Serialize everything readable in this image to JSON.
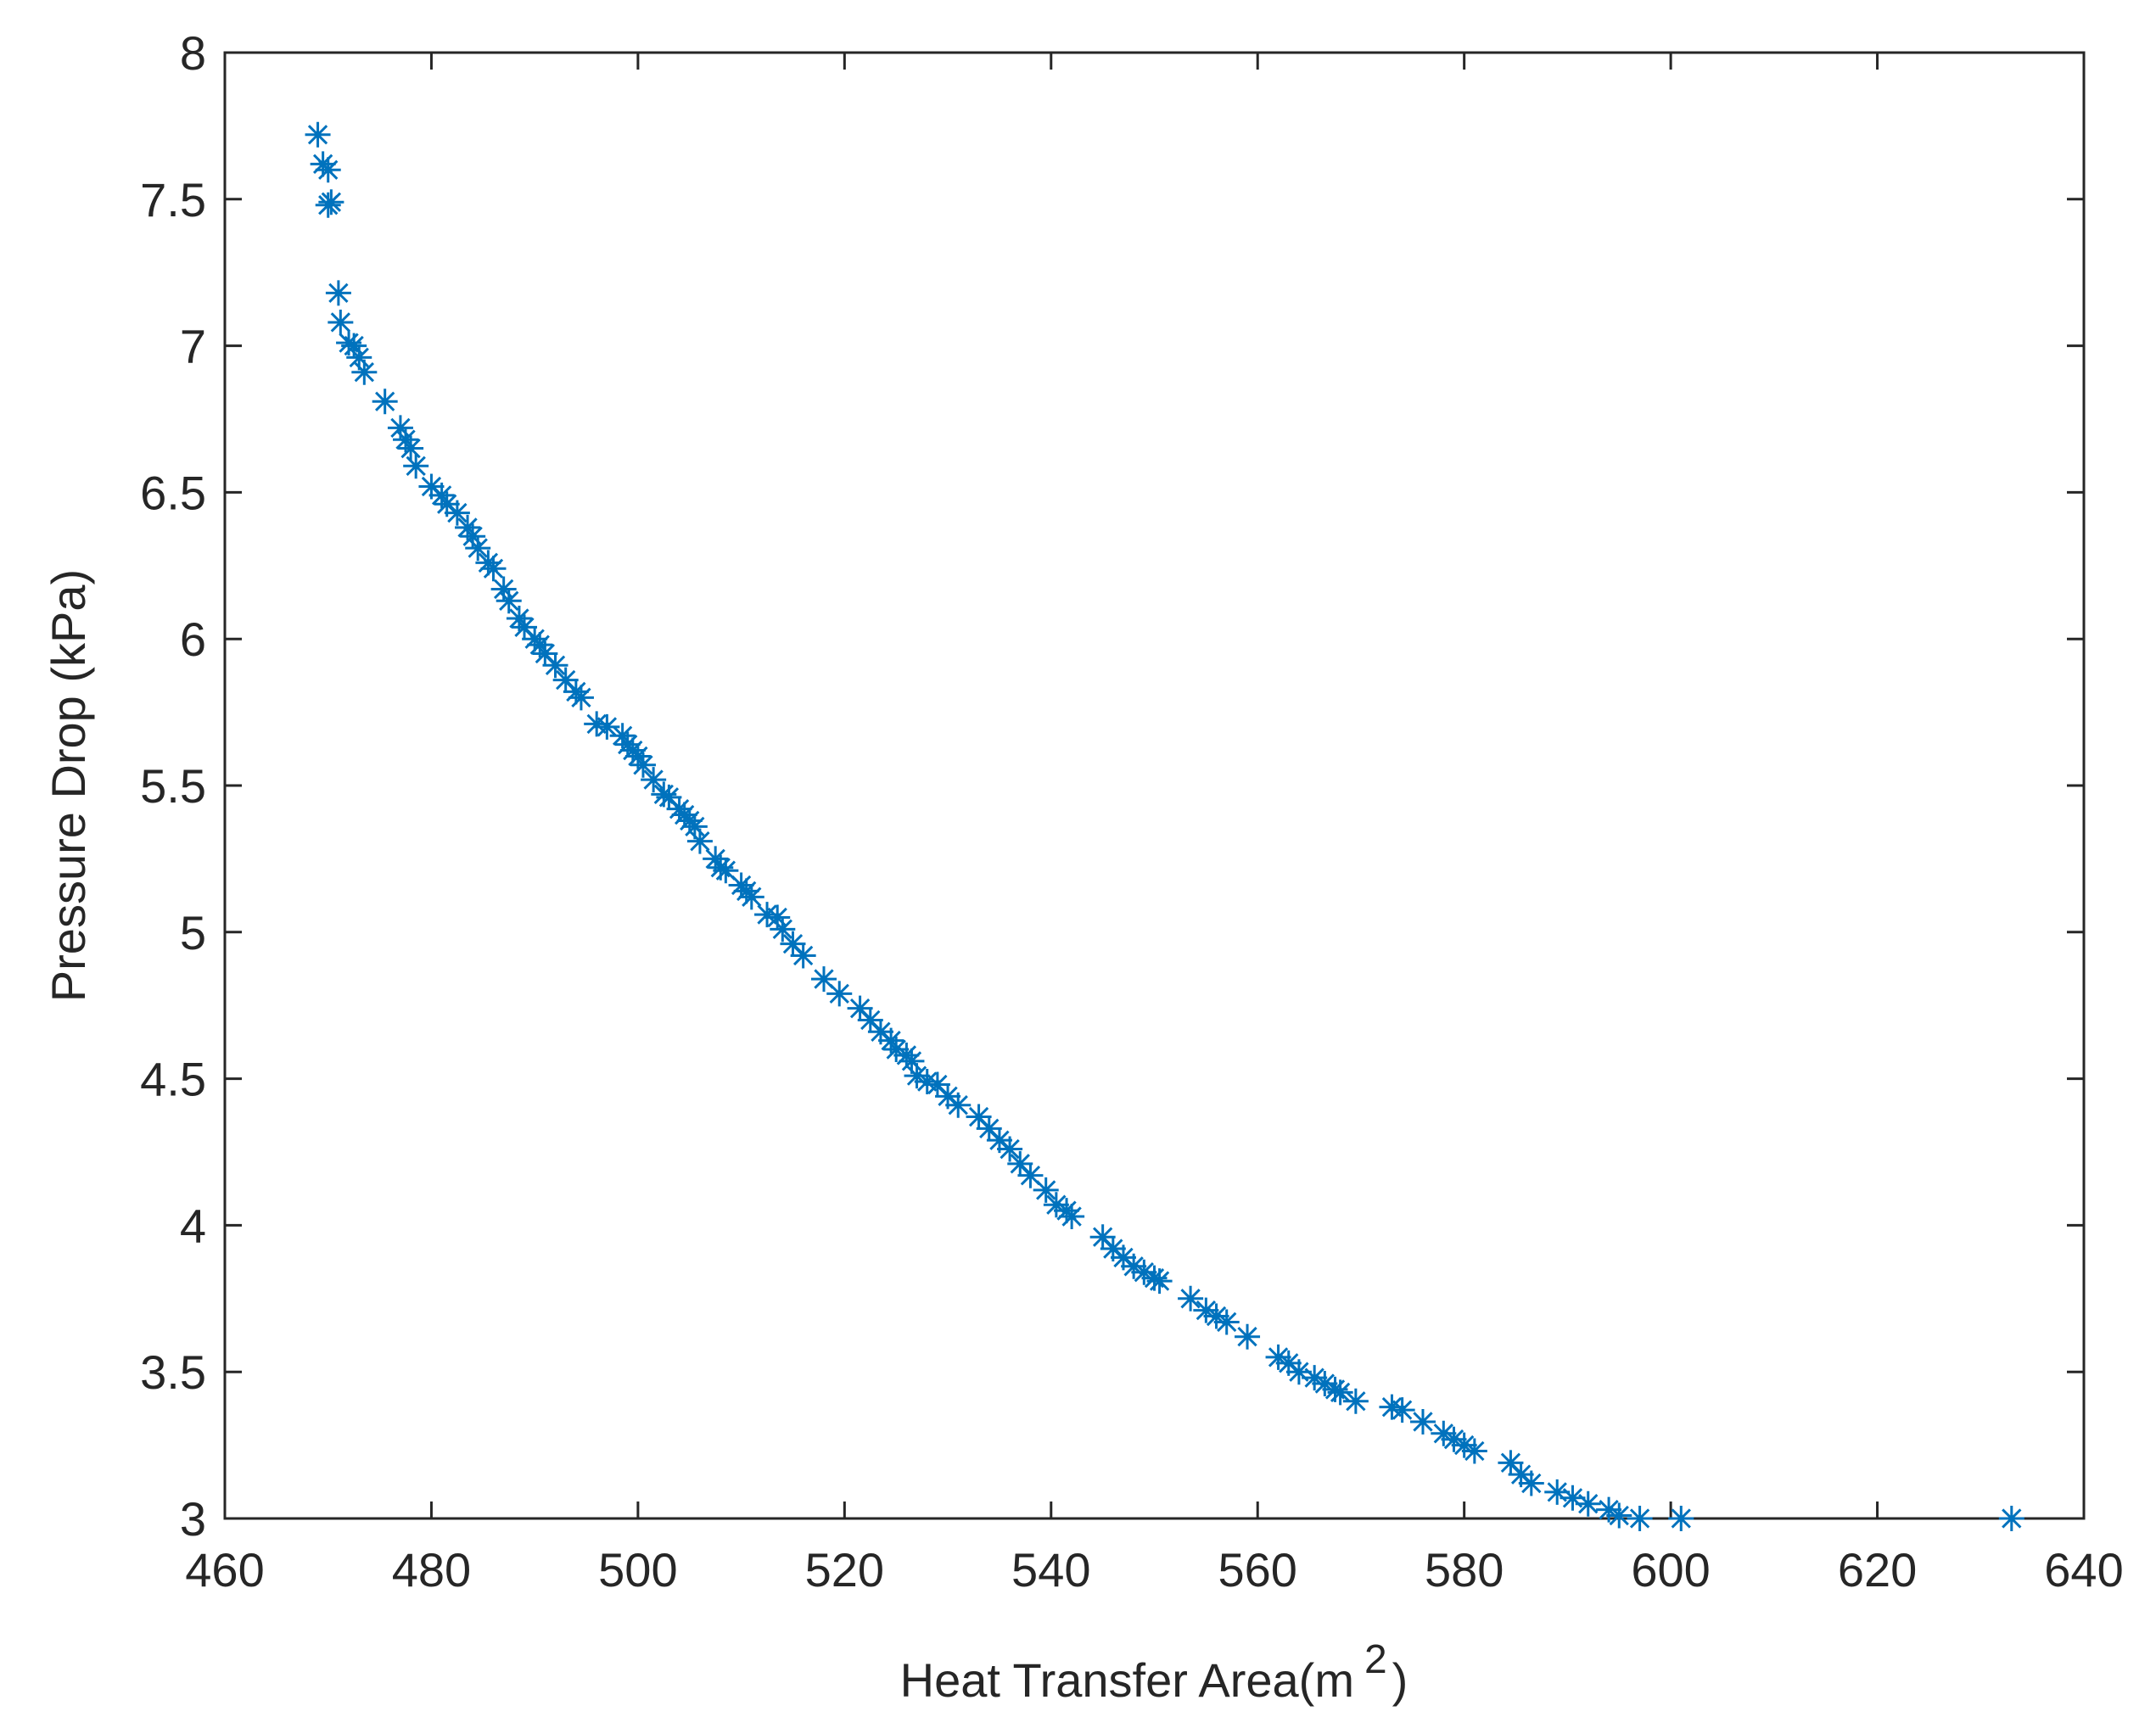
{
  "chart_data": {
    "type": "scatter",
    "xlabel": "Heat Transfer Area(m",
    "xlabel_sup": "2",
    "xlabel_end": ")",
    "ylabel": "Pressure Drop (kPa)",
    "xlim": [
      460,
      640
    ],
    "ylim": [
      3,
      8
    ],
    "xticks": [
      460,
      480,
      500,
      520,
      540,
      560,
      580,
      600,
      620,
      640
    ],
    "yticks": [
      3,
      3.5,
      4,
      4.5,
      5,
      5.5,
      6,
      6.5,
      7,
      7.5,
      8
    ],
    "marker": "asterisk",
    "box": true,
    "grid": false,
    "series": [
      {
        "color": "#0072bd",
        "x": [
          469,
          469.5,
          470,
          470,
          470.3,
          471,
          471.2,
          472,
          472.5,
          473,
          473.5,
          475.5,
          477,
          477.5,
          478,
          478.5,
          480,
          481,
          481.5,
          482.5,
          483.5,
          484,
          484.5,
          485.5,
          486,
          487,
          487.5,
          488.5,
          489,
          490,
          490.5,
          491,
          492,
          493,
          494,
          494.5,
          496,
          497,
          498.5,
          499,
          499.5,
          500,
          500.5,
          501.5,
          502.5,
          503,
          504,
          504.5,
          505,
          505.5,
          506,
          507.5,
          508,
          508.5,
          510,
          510.5,
          511,
          512.5,
          513.5,
          514,
          515,
          516,
          518,
          519.5,
          521.5,
          522.5,
          523.5,
          524.5,
          525,
          526,
          526.5,
          527,
          528,
          529,
          530,
          531,
          533,
          534,
          535,
          536,
          537,
          538,
          539.5,
          540.5,
          541.5,
          542,
          545,
          546,
          547,
          548,
          549,
          550,
          550.5,
          553.5,
          555,
          556,
          557,
          559,
          562,
          563,
          564,
          565.5,
          566.5,
          567.5,
          568,
          569.5,
          573,
          574,
          576,
          578,
          579,
          580,
          581,
          584.5,
          585.5,
          586.5,
          589,
          590.5,
          592,
          594,
          595,
          597,
          601,
          633
        ],
        "values": [
          7.72,
          7.62,
          7.6,
          7.48,
          7.49,
          7.18,
          7.08,
          7.01,
          7.0,
          6.96,
          6.91,
          6.81,
          6.72,
          6.68,
          6.65,
          6.59,
          6.52,
          6.49,
          6.46,
          6.43,
          6.38,
          6.35,
          6.31,
          6.26,
          6.24,
          6.17,
          6.13,
          6.07,
          6.04,
          6.0,
          5.98,
          5.95,
          5.91,
          5.86,
          5.82,
          5.8,
          5.71,
          5.7,
          5.67,
          5.64,
          5.62,
          5.6,
          5.57,
          5.52,
          5.47,
          5.46,
          5.42,
          5.4,
          5.38,
          5.36,
          5.31,
          5.25,
          5.22,
          5.21,
          5.16,
          5.14,
          5.12,
          5.06,
          5.05,
          5.01,
          4.96,
          4.92,
          4.84,
          4.79,
          4.74,
          4.7,
          4.66,
          4.63,
          4.6,
          4.58,
          4.56,
          4.51,
          4.49,
          4.48,
          4.44,
          4.41,
          4.37,
          4.33,
          4.29,
          4.26,
          4.21,
          4.17,
          4.12,
          4.07,
          4.05,
          4.03,
          3.96,
          3.92,
          3.89,
          3.86,
          3.84,
          3.82,
          3.81,
          3.75,
          3.71,
          3.69,
          3.67,
          3.62,
          3.55,
          3.53,
          3.5,
          3.48,
          3.46,
          3.44,
          3.43,
          3.4,
          3.38,
          3.37,
          3.33,
          3.29,
          3.27,
          3.25,
          3.23,
          3.19,
          3.15,
          3.12,
          3.09,
          3.07,
          3.05,
          3.03,
          3.01,
          3.0,
          3.0,
          3.0
        ]
      }
    ]
  }
}
